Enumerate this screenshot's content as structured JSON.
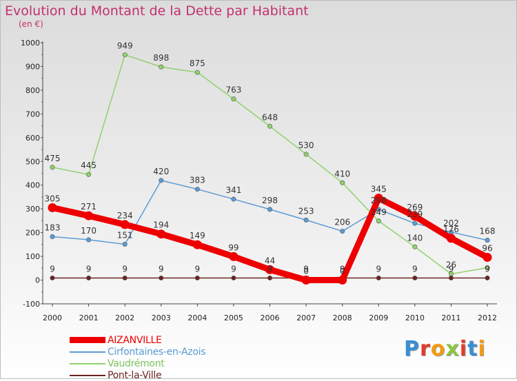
{
  "title": "Evolution du Montant de la Dette par Habitant",
  "subtitle": "(en €)",
  "logo": {
    "letters": [
      {
        "ch": "P",
        "color": "#3a8fd6"
      },
      {
        "ch": "r",
        "color": "#e23b2a"
      },
      {
        "ch": "o",
        "color": "#f39c12"
      },
      {
        "ch": "x",
        "color": "#8cc63f"
      },
      {
        "ch": "i",
        "color": "#e23b2a"
      },
      {
        "ch": "t",
        "color": "#3a8fd6"
      },
      {
        "ch": "i",
        "color": "#f39c12"
      }
    ]
  },
  "chart_data": {
    "type": "line",
    "x": [
      "2000",
      "2001",
      "2002",
      "2003",
      "2004",
      "2005",
      "2006",
      "2007",
      "2008",
      "2009",
      "2010",
      "2011",
      "2012"
    ],
    "ylim": [
      -100,
      1000
    ],
    "yticks": [
      -100,
      0,
      100,
      200,
      300,
      400,
      500,
      600,
      700,
      800,
      900,
      1000
    ],
    "grid": false,
    "legend_placement": "bottom-left",
    "series": [
      {
        "name": "AIZANVILLE",
        "color": "#ee0000",
        "style": "thick",
        "values": [
          305,
          271,
          234,
          194,
          149,
          99,
          44,
          0,
          0,
          345,
          269,
          176,
          96
        ],
        "labels": [
          "305",
          "271",
          "234",
          "194",
          "149",
          "99",
          "44",
          "0",
          "0",
          "345",
          "269",
          "176",
          "96"
        ]
      },
      {
        "name": "Cirfontaines-en-Azois",
        "color": "#5b9bd5",
        "style": "thin",
        "values": [
          183,
          170,
          151,
          420,
          383,
          341,
          298,
          253,
          206,
          298,
          239,
          202,
          168
        ],
        "labels": [
          "183",
          "170",
          "151",
          "420",
          "383",
          "341",
          "298",
          "253",
          "206",
          "298",
          "239",
          "202",
          "168"
        ]
      },
      {
        "name": "Vaudrémont",
        "color": "#8fd16c",
        "style": "thin",
        "values": [
          475,
          445,
          949,
          898,
          875,
          763,
          648,
          530,
          410,
          249,
          140,
          26,
          52
        ],
        "labels": [
          "475",
          "445",
          "949",
          "898",
          "875",
          "763",
          "648",
          "530",
          "410",
          "249",
          "140",
          "26",
          ""
        ]
      },
      {
        "name": "Pont-la-Ville",
        "color": "#6b2222",
        "style": "thin",
        "values": [
          9,
          9,
          9,
          9,
          9,
          9,
          9,
          9,
          9,
          9,
          9,
          9,
          9
        ],
        "labels": [
          "9",
          "9",
          "9",
          "9",
          "9",
          "9",
          "9",
          "9",
          "9",
          "9",
          "9",
          "9",
          "9"
        ]
      }
    ]
  }
}
